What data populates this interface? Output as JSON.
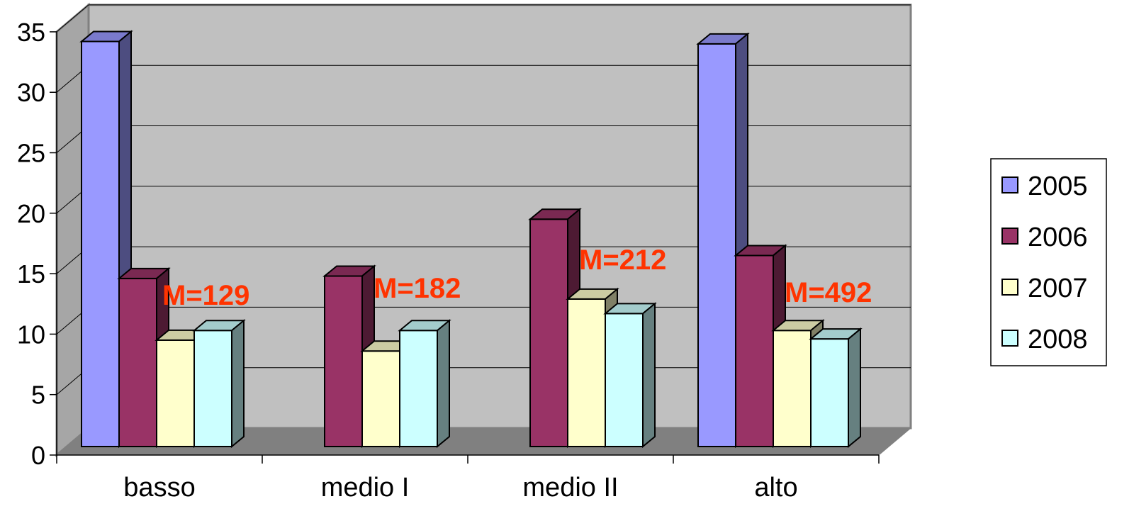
{
  "chart_data": {
    "type": "bar",
    "title": "",
    "xlabel": "",
    "ylabel": "",
    "categories": [
      "basso",
      "medio I",
      "medio II",
      "alto"
    ],
    "ylim": [
      0,
      35
    ],
    "yticks": [
      0,
      5,
      10,
      15,
      20,
      25,
      30,
      35
    ],
    "grid": true,
    "three_d": true,
    "legend_position": "right",
    "series": [
      {
        "name": "2005",
        "color": "#9999ff",
        "values": [
          33.5,
          null,
          null,
          33.3
        ]
      },
      {
        "name": "2006",
        "color": "#993366",
        "values": [
          13.9,
          14.1,
          18.8,
          15.8
        ]
      },
      {
        "name": "2007",
        "color": "#ffffcc",
        "values": [
          8.8,
          7.9,
          12.2,
          9.6
        ]
      },
      {
        "name": "2008",
        "color": "#ccffff",
        "values": [
          9.6,
          9.6,
          11.0,
          8.9
        ]
      }
    ],
    "annotations": [
      "M=129",
      "M=182",
      "M=212",
      "M=492"
    ]
  }
}
